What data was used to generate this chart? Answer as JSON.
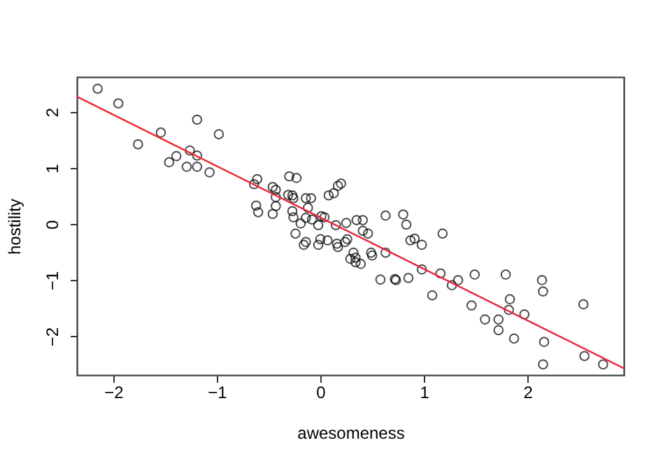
{
  "chart_data": {
    "type": "scatter",
    "xlabel": "awesomeness",
    "ylabel": "hostility",
    "xlim": [
      -2.35,
      2.93
    ],
    "ylim": [
      -2.69,
      2.62
    ],
    "xticks": [
      -2,
      -1,
      0,
      1,
      2
    ],
    "yticks": [
      -2,
      -1,
      0,
      1,
      2
    ],
    "grid": false,
    "series": [
      {
        "marker": "circle",
        "color": "#000000",
        "x": [
          -2.15,
          -1.95,
          -1.76,
          -1.54,
          -1.46,
          -1.39,
          -1.29,
          -1.26,
          -1.19,
          -1.19,
          -1.19,
          -1.07,
          -0.98,
          -0.64,
          -0.61,
          -0.62,
          -0.6,
          -0.46,
          -0.46,
          -0.43,
          -0.43,
          -0.43,
          -0.3,
          -0.31,
          -0.27,
          -0.26,
          -0.23,
          -0.27,
          -0.26,
          -0.24,
          -0.19,
          -0.14,
          -0.09,
          -0.12,
          -0.14,
          -0.08,
          -0.14,
          -0.16,
          -0.02,
          -0.02,
          0.01,
          0.04,
          0.0,
          0.07,
          0.08,
          0.13,
          0.17,
          0.2,
          0.15,
          0.16,
          0.17,
          0.25,
          0.26,
          0.24,
          0.29,
          0.32,
          0.34,
          0.35,
          0.34,
          0.39,
          0.41,
          0.41,
          0.46,
          0.49,
          0.5,
          0.63,
          0.63,
          0.58,
          0.72,
          0.73,
          0.8,
          0.83,
          0.87,
          0.91,
          0.85,
          0.98,
          0.98,
          1.08,
          1.16,
          1.18,
          1.27,
          1.33,
          1.46,
          1.49,
          1.59,
          1.72,
          1.72,
          1.79,
          1.82,
          1.83,
          1.87,
          1.97,
          2.14,
          2.15,
          2.16,
          2.15,
          2.54,
          2.55,
          2.73
        ],
        "values": [
          2.41,
          2.15,
          1.42,
          1.63,
          1.1,
          1.21,
          1.02,
          1.31,
          1.86,
          1.22,
          1.02,
          0.92,
          1.6,
          0.71,
          0.8,
          0.33,
          0.21,
          0.66,
          0.18,
          0.61,
          0.48,
          0.32,
          0.85,
          0.52,
          0.51,
          0.46,
          0.82,
          0.23,
          0.12,
          -0.17,
          0.01,
          0.46,
          0.46,
          0.29,
          0.11,
          0.08,
          -0.32,
          -0.37,
          -0.37,
          -0.02,
          0.14,
          0.12,
          -0.27,
          -0.29,
          0.51,
          0.55,
          0.68,
          0.72,
          -0.02,
          -0.35,
          -0.41,
          0.02,
          -0.27,
          -0.32,
          -0.62,
          -0.51,
          -0.6,
          0.07,
          -0.68,
          -0.71,
          0.07,
          -0.12,
          -0.17,
          -0.51,
          -0.56,
          -0.51,
          0.15,
          -0.99,
          -0.98,
          -1.0,
          0.17,
          -0.01,
          -0.29,
          -0.26,
          -0.96,
          -0.37,
          -0.81,
          -1.27,
          -0.88,
          -0.17,
          -1.09,
          -1.0,
          -1.45,
          -0.9,
          -1.7,
          -1.89,
          -1.7,
          -0.9,
          -1.53,
          -1.34,
          -2.04,
          -1.61,
          -1.0,
          -1.2,
          -2.1,
          -2.5,
          -1.43,
          -2.35,
          -2.5
        ]
      },
      {
        "type": "line",
        "color": "#e8283c",
        "x": [
          -2.35,
          2.93
        ],
        "values": [
          2.27,
          -2.57
        ]
      }
    ]
  }
}
